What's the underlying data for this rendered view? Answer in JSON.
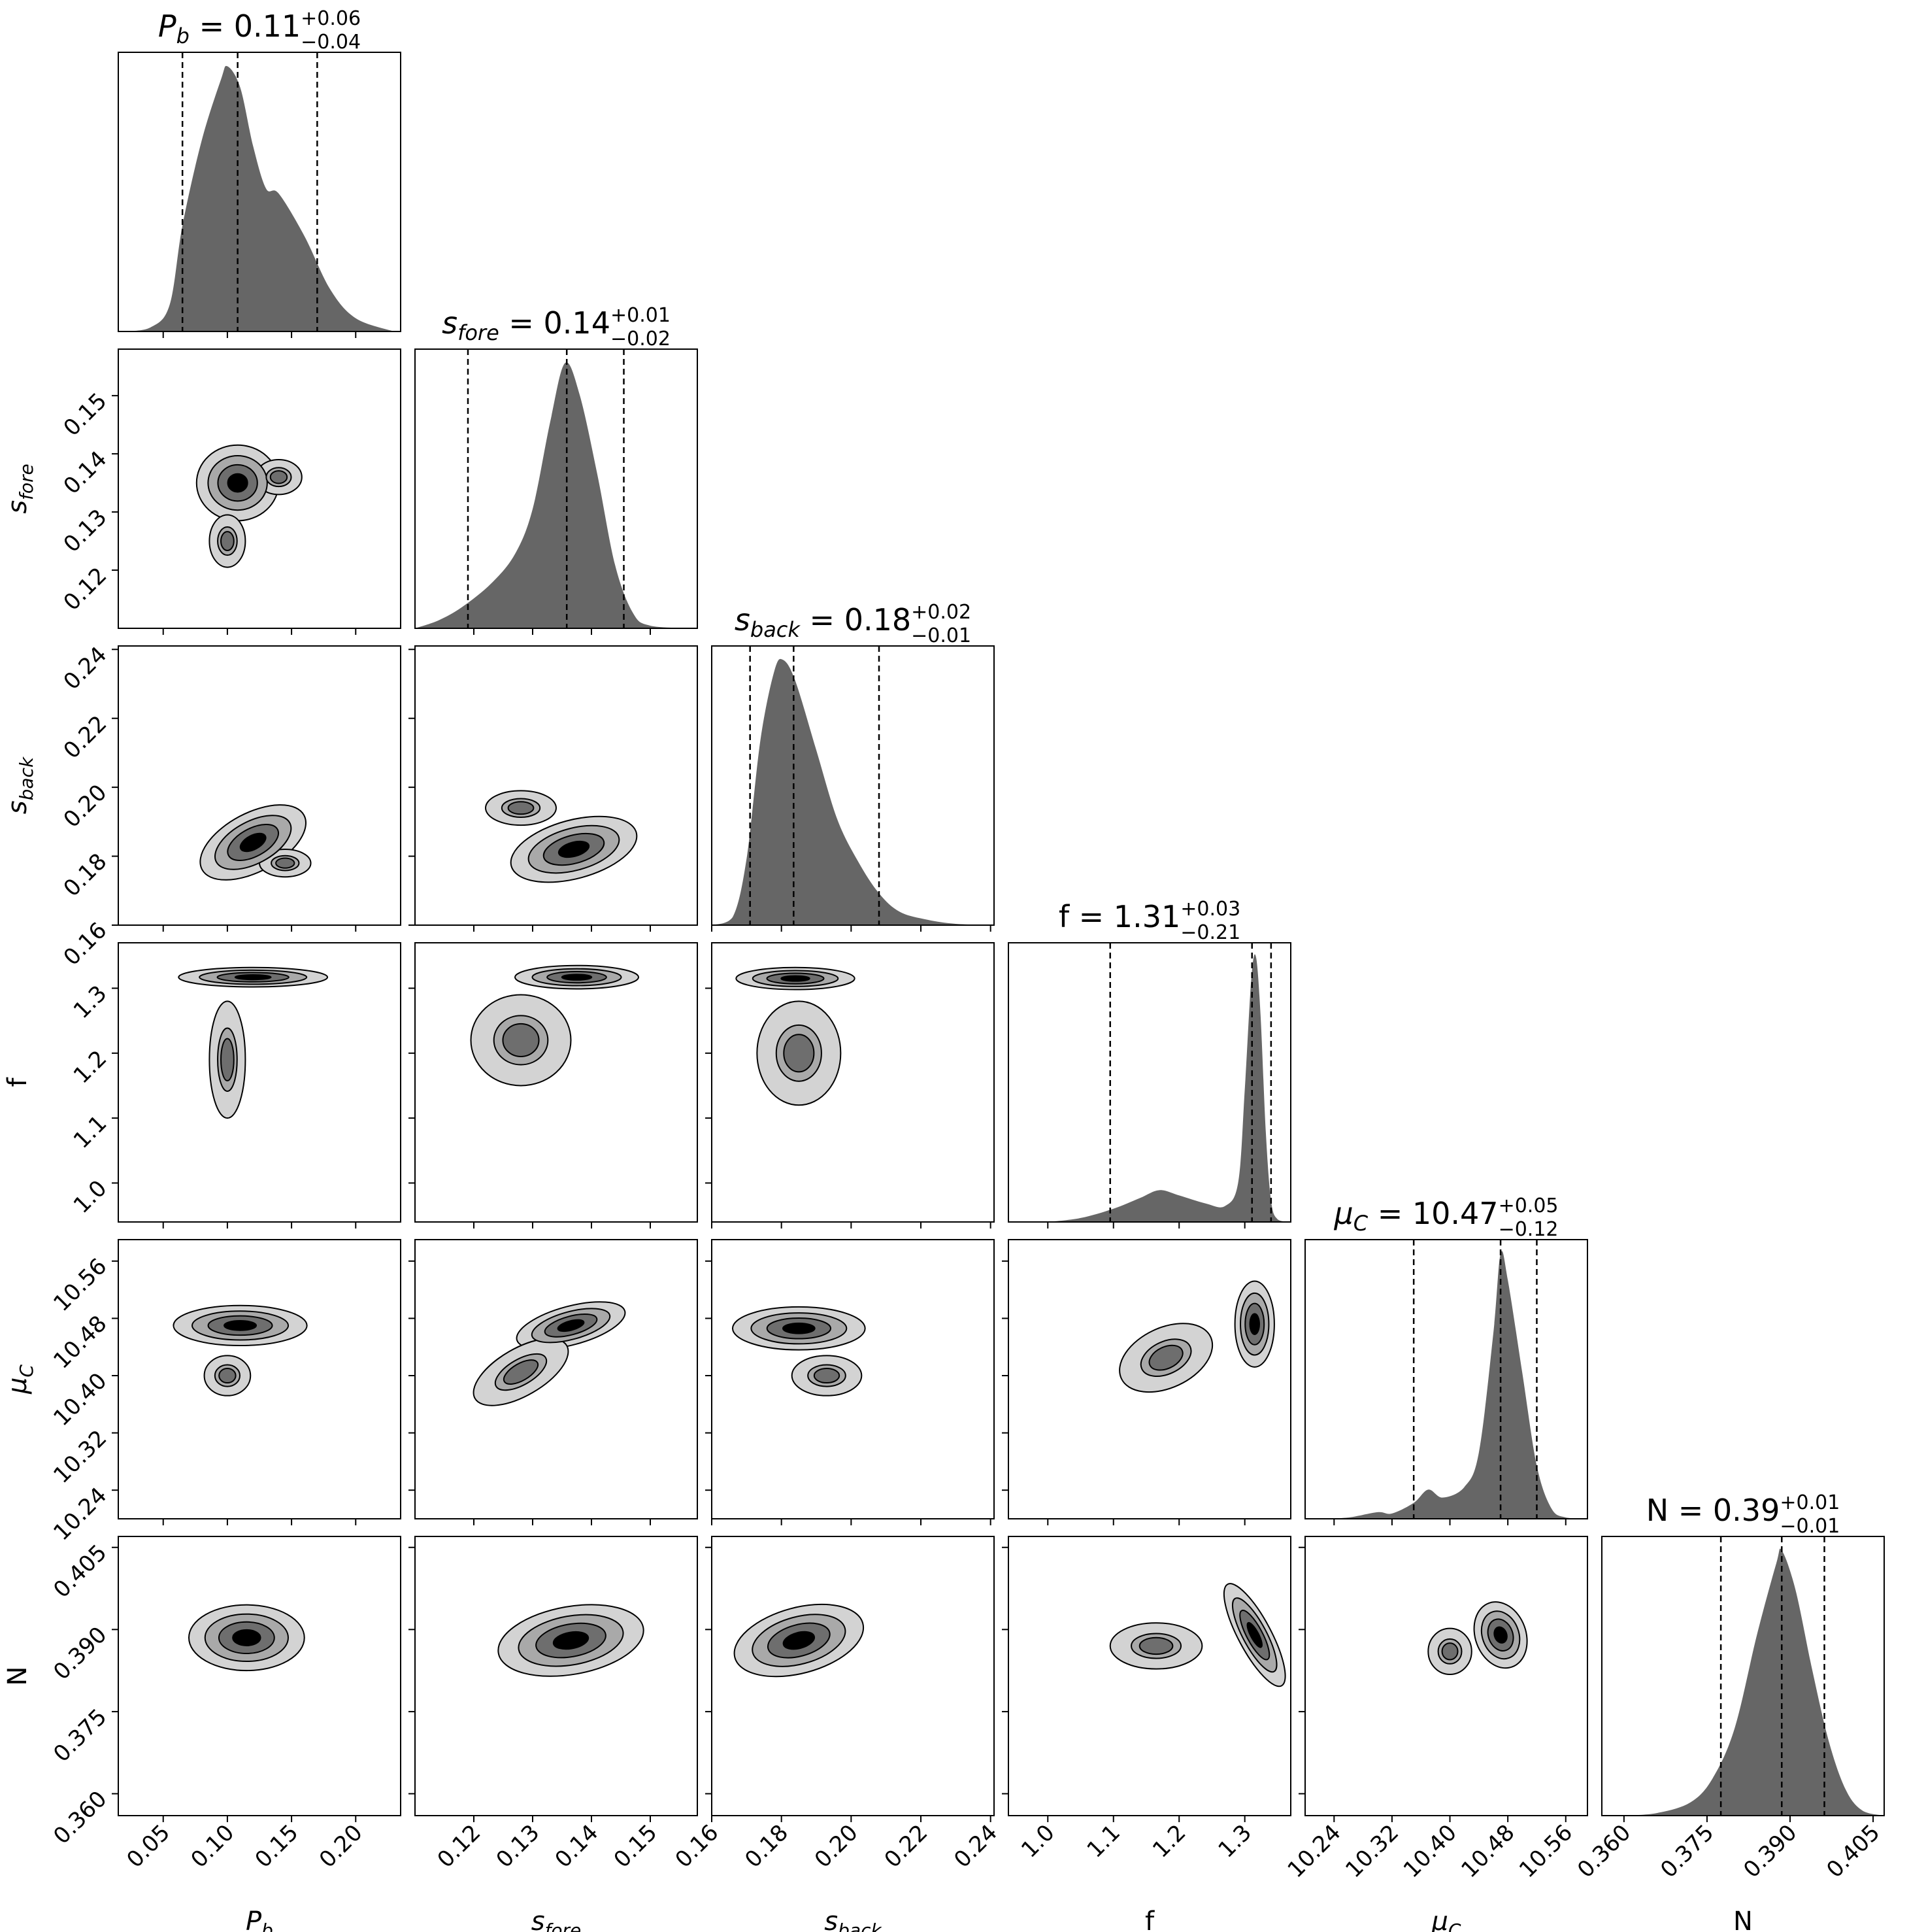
{
  "chart_data": {
    "type": "corner",
    "parameters": [
      {
        "key": "Pb",
        "label_base": "P",
        "label_sub": "b",
        "range": [
          0.015,
          0.235
        ],
        "ticks": [
          "0.05",
          "0.10",
          "0.15",
          "0.20"
        ],
        "tick_values": [
          0.05,
          0.1,
          0.15,
          0.2
        ],
        "title_value": "0.11",
        "title_plus": "+0.06",
        "title_minus": "−0.04",
        "quantiles": [
          0.065,
          0.108,
          0.17
        ],
        "hist": [
          [
            0.02,
            0
          ],
          [
            0.04,
            0.015
          ],
          [
            0.055,
            0.1
          ],
          [
            0.065,
            0.4
          ],
          [
            0.08,
            0.72
          ],
          [
            0.095,
            0.95
          ],
          [
            0.1,
            1.0
          ],
          [
            0.11,
            0.92
          ],
          [
            0.12,
            0.7
          ],
          [
            0.13,
            0.54
          ],
          [
            0.14,
            0.52
          ],
          [
            0.16,
            0.36
          ],
          [
            0.18,
            0.16
          ],
          [
            0.2,
            0.05
          ],
          [
            0.23,
            0
          ]
        ]
      },
      {
        "key": "sfore",
        "label_base": "s",
        "label_sub": "fore",
        "range": [
          0.11,
          0.158
        ],
        "ticks": [
          "0.12",
          "0.13",
          "0.14",
          "0.15"
        ],
        "tick_values": [
          0.12,
          0.13,
          0.14,
          0.15
        ],
        "title_value": "0.14",
        "title_plus": "+0.01",
        "title_minus": "−0.02",
        "quantiles": [
          0.119,
          0.1358,
          0.1455
        ],
        "hist": [
          [
            0.11,
            0
          ],
          [
            0.114,
            0.03
          ],
          [
            0.118,
            0.08
          ],
          [
            0.123,
            0.17
          ],
          [
            0.127,
            0.28
          ],
          [
            0.13,
            0.45
          ],
          [
            0.133,
            0.78
          ],
          [
            0.1355,
            1.0
          ],
          [
            0.138,
            0.88
          ],
          [
            0.141,
            0.58
          ],
          [
            0.144,
            0.24
          ],
          [
            0.147,
            0.06
          ],
          [
            0.15,
            0.01
          ],
          [
            0.158,
            0
          ]
        ]
      },
      {
        "key": "sback",
        "label_base": "s",
        "label_sub": "back",
        "range": [
          0.16,
          0.241
        ],
        "ticks": [
          "0.16",
          "0.18",
          "0.20",
          "0.22",
          "0.24"
        ],
        "tick_values": [
          0.16,
          0.18,
          0.2,
          0.22,
          0.24
        ],
        "title_value": "0.18",
        "title_plus": "+0.02",
        "title_minus": "−0.01",
        "quantiles": [
          0.171,
          0.1835,
          0.208
        ],
        "hist": [
          [
            0.16,
            0
          ],
          [
            0.166,
            0.03
          ],
          [
            0.17,
            0.25
          ],
          [
            0.174,
            0.7
          ],
          [
            0.178,
            0.96
          ],
          [
            0.1805,
            1.0
          ],
          [
            0.184,
            0.92
          ],
          [
            0.19,
            0.66
          ],
          [
            0.196,
            0.4
          ],
          [
            0.202,
            0.24
          ],
          [
            0.208,
            0.12
          ],
          [
            0.214,
            0.05
          ],
          [
            0.222,
            0.02
          ],
          [
            0.23,
            0.005
          ],
          [
            0.241,
            0
          ]
        ]
      },
      {
        "key": "f",
        "label_base": "f",
        "label_sub": "",
        "range": [
          0.94,
          1.37
        ],
        "ticks": [
          "1.0",
          "1.1",
          "1.2",
          "1.3"
        ],
        "tick_values": [
          1.0,
          1.1,
          1.2,
          1.3
        ],
        "title_value": "1.31",
        "title_plus": "+0.03",
        "title_minus": "−0.21",
        "quantiles": [
          1.095,
          1.311,
          1.34
        ],
        "hist": [
          [
            1.0,
            0
          ],
          [
            1.05,
            0.015
          ],
          [
            1.1,
            0.05
          ],
          [
            1.14,
            0.09
          ],
          [
            1.17,
            0.12
          ],
          [
            1.2,
            0.1
          ],
          [
            1.24,
            0.07
          ],
          [
            1.27,
            0.06
          ],
          [
            1.29,
            0.15
          ],
          [
            1.3,
            0.5
          ],
          [
            1.31,
            0.92
          ],
          [
            1.317,
            1.0
          ],
          [
            1.324,
            0.78
          ],
          [
            1.332,
            0.34
          ],
          [
            1.34,
            0.08
          ],
          [
            1.35,
            0.01
          ],
          [
            1.37,
            0
          ]
        ]
      },
      {
        "key": "muC",
        "label_base": "μ",
        "label_sub": "C",
        "range": [
          10.2,
          10.59
        ],
        "ticks": [
          "10.24",
          "10.32",
          "10.40",
          "10.48",
          "10.56"
        ],
        "tick_values": [
          10.24,
          10.32,
          10.4,
          10.48,
          10.56
        ],
        "title_value": "10.47",
        "title_plus": "+0.05",
        "title_minus": "−0.12",
        "quantiles": [
          10.35,
          10.47,
          10.52
        ],
        "hist": [
          [
            10.22,
            0
          ],
          [
            10.26,
            0.005
          ],
          [
            10.3,
            0.025
          ],
          [
            10.32,
            0.02
          ],
          [
            10.35,
            0.06
          ],
          [
            10.37,
            0.11
          ],
          [
            10.39,
            0.08
          ],
          [
            10.42,
            0.12
          ],
          [
            10.44,
            0.25
          ],
          [
            10.46,
            0.7
          ],
          [
            10.47,
            1.0
          ],
          [
            10.48,
            0.9
          ],
          [
            10.5,
            0.55
          ],
          [
            10.52,
            0.2
          ],
          [
            10.54,
            0.04
          ],
          [
            10.56,
            0.005
          ],
          [
            10.59,
            0
          ]
        ]
      },
      {
        "key": "N",
        "label_base": "N",
        "label_sub": "",
        "range": [
          0.356,
          0.407
        ],
        "ticks": [
          "0.360",
          "0.375",
          "0.390",
          "0.405"
        ],
        "tick_values": [
          0.36,
          0.375,
          0.39,
          0.405
        ],
        "title_value": "0.39",
        "title_plus": "+0.01",
        "title_minus": "−0.01",
        "quantiles": [
          0.3775,
          0.3885,
          0.3962
        ],
        "hist": [
          [
            0.36,
            0
          ],
          [
            0.366,
            0.01
          ],
          [
            0.372,
            0.05
          ],
          [
            0.376,
            0.14
          ],
          [
            0.38,
            0.33
          ],
          [
            0.384,
            0.68
          ],
          [
            0.3875,
            0.95
          ],
          [
            0.3885,
            1.0
          ],
          [
            0.391,
            0.85
          ],
          [
            0.394,
            0.55
          ],
          [
            0.397,
            0.28
          ],
          [
            0.4,
            0.1
          ],
          [
            0.403,
            0.02
          ],
          [
            0.407,
            0
          ]
        ]
      }
    ],
    "contours": [
      {
        "row": 1,
        "col": 0,
        "blobs": [
          {
            "cx": 0.108,
            "cy": 0.135,
            "rx": 0.032,
            "ry": 0.0065,
            "rot": 0
          },
          {
            "cx": 0.1,
            "cy": 0.125,
            "rx": 0.014,
            "ry": 0.0045,
            "rot": 0
          },
          {
            "cx": 0.14,
            "cy": 0.136,
            "rx": 0.018,
            "ry": 0.003,
            "rot": 0
          }
        ]
      },
      {
        "row": 2,
        "col": 0,
        "blobs": [
          {
            "cx": 0.12,
            "cy": 0.184,
            "rx": 0.045,
            "ry": 0.0085,
            "rot": -28
          },
          {
            "cx": 0.145,
            "cy": 0.178,
            "rx": 0.02,
            "ry": 0.004,
            "rot": 0
          }
        ]
      },
      {
        "row": 2,
        "col": 1,
        "blobs": [
          {
            "cx": 0.137,
            "cy": 0.182,
            "rx": 0.011,
            "ry": 0.0085,
            "rot": -15
          },
          {
            "cx": 0.128,
            "cy": 0.194,
            "rx": 0.006,
            "ry": 0.005,
            "rot": 0
          }
        ]
      },
      {
        "row": 3,
        "col": 0,
        "blobs": [
          {
            "cx": 0.12,
            "cy": 1.317,
            "rx": 0.058,
            "ry": 0.015,
            "rot": 0
          },
          {
            "cx": 0.1,
            "cy": 1.19,
            "rx": 0.014,
            "ry": 0.09,
            "rot": 0
          }
        ]
      },
      {
        "row": 3,
        "col": 1,
        "blobs": [
          {
            "cx": 0.1375,
            "cy": 1.317,
            "rx": 0.0105,
            "ry": 0.018,
            "rot": 0
          },
          {
            "cx": 0.128,
            "cy": 1.22,
            "rx": 0.0085,
            "ry": 0.07,
            "rot": 0
          }
        ]
      },
      {
        "row": 3,
        "col": 2,
        "blobs": [
          {
            "cx": 0.184,
            "cy": 1.315,
            "rx": 0.017,
            "ry": 0.017,
            "rot": 0
          },
          {
            "cx": 0.185,
            "cy": 1.2,
            "rx": 0.012,
            "ry": 0.08,
            "rot": 0
          }
        ]
      },
      {
        "row": 4,
        "col": 0,
        "blobs": [
          {
            "cx": 0.11,
            "cy": 10.47,
            "rx": 0.052,
            "ry": 0.028,
            "rot": 0
          },
          {
            "cx": 0.1,
            "cy": 10.4,
            "rx": 0.018,
            "ry": 0.028,
            "rot": 0
          }
        ]
      },
      {
        "row": 4,
        "col": 1,
        "blobs": [
          {
            "cx": 0.1365,
            "cy": 10.47,
            "rx": 0.0095,
            "ry": 0.027,
            "rot": -15
          },
          {
            "cx": 0.128,
            "cy": 10.405,
            "rx": 0.009,
            "ry": 0.033,
            "rot": -30
          }
        ]
      },
      {
        "row": 4,
        "col": 2,
        "blobs": [
          {
            "cx": 0.185,
            "cy": 10.466,
            "rx": 0.019,
            "ry": 0.03,
            "rot": 0
          },
          {
            "cx": 0.193,
            "cy": 10.4,
            "rx": 0.01,
            "ry": 0.028,
            "rot": 0
          }
        ]
      },
      {
        "row": 4,
        "col": 3,
        "blobs": [
          {
            "cx": 1.315,
            "cy": 10.472,
            "rx": 0.03,
            "ry": 0.06,
            "rot": 0
          },
          {
            "cx": 1.18,
            "cy": 10.425,
            "rx": 0.075,
            "ry": 0.042,
            "rot": -25
          }
        ]
      },
      {
        "row": 5,
        "col": 0,
        "blobs": [
          {
            "cx": 0.115,
            "cy": 0.3885,
            "rx": 0.045,
            "ry": 0.006,
            "rot": 0
          }
        ]
      },
      {
        "row": 5,
        "col": 1,
        "blobs": [
          {
            "cx": 0.1365,
            "cy": 0.388,
            "rx": 0.0125,
            "ry": 0.0062,
            "rot": -10
          }
        ]
      },
      {
        "row": 5,
        "col": 2,
        "blobs": [
          {
            "cx": 0.185,
            "cy": 0.388,
            "rx": 0.019,
            "ry": 0.006,
            "rot": -15
          }
        ]
      },
      {
        "row": 5,
        "col": 3,
        "blobs": [
          {
            "cx": 1.315,
            "cy": 0.389,
            "rx": 0.025,
            "ry": 0.0105,
            "rot": -28
          },
          {
            "cx": 1.165,
            "cy": 0.387,
            "rx": 0.07,
            "ry": 0.0042,
            "rot": 0
          }
        ]
      },
      {
        "row": 5,
        "col": 4,
        "blobs": [
          {
            "cx": 10.47,
            "cy": 0.389,
            "rx": 0.035,
            "ry": 0.0062,
            "rot": -20
          },
          {
            "cx": 10.4,
            "cy": 0.386,
            "rx": 0.03,
            "ry": 0.0042,
            "rot": 0
          }
        ]
      }
    ],
    "contour_levels": [
      1.0,
      0.72,
      0.48,
      0.24
    ],
    "contour_fills": [
      "#d3d3d3",
      "#a9a9a9",
      "#6e6e6e",
      "#000000"
    ],
    "hist_color": "#666666",
    "grid": false
  }
}
